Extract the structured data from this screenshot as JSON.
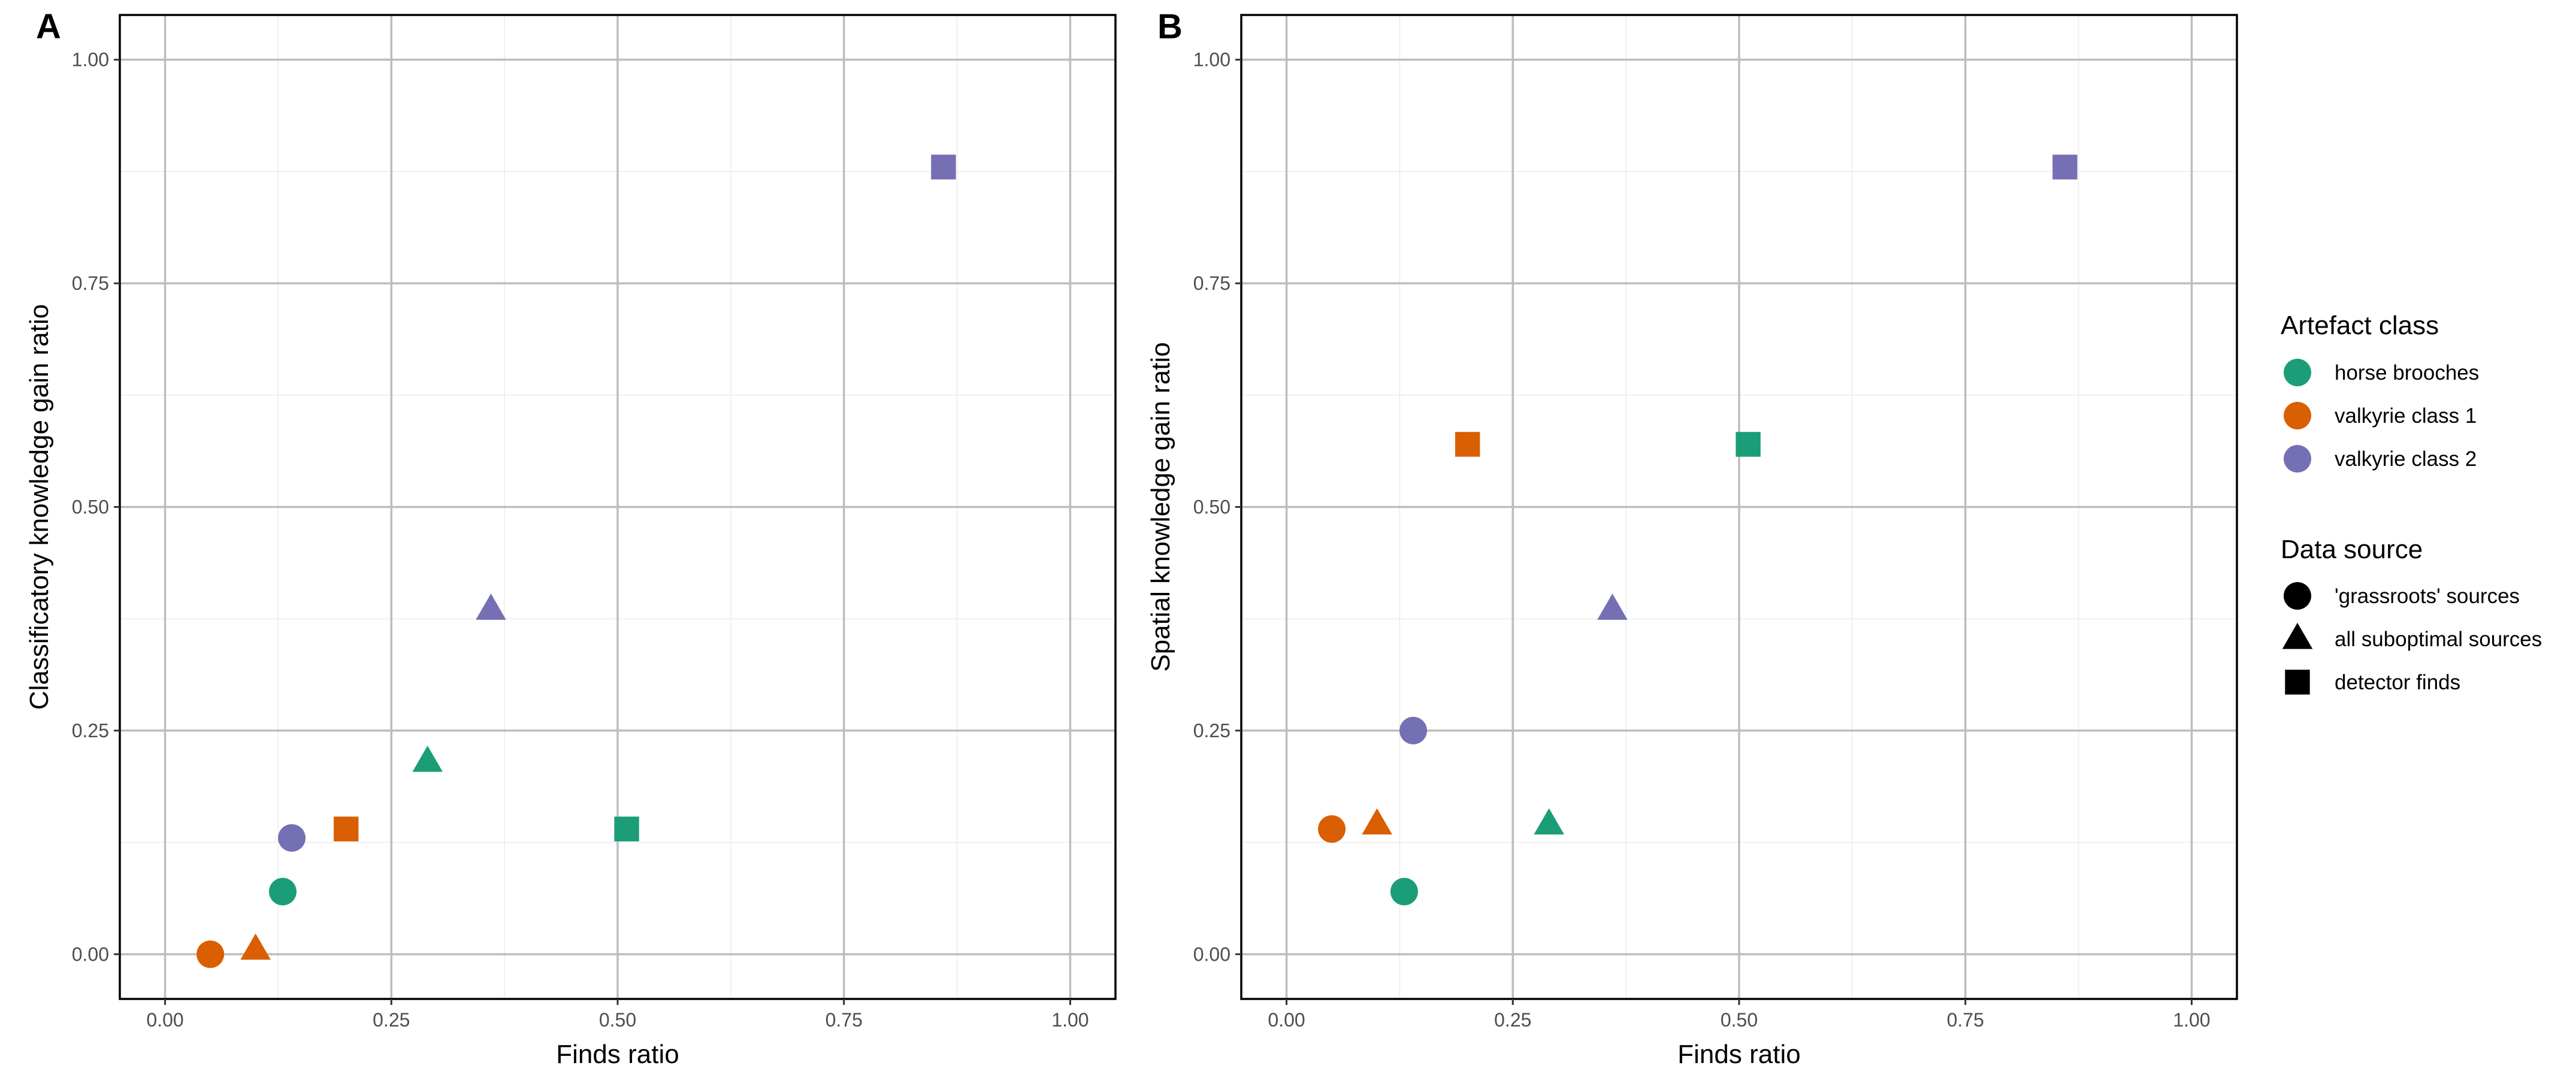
{
  "colors": {
    "horse brooches": "#1b9e77",
    "valkyrie class 1": "#d95f02",
    "valkyrie class 2": "#7570b3"
  },
  "chart_data": [
    {
      "type": "scatter",
      "panel": "A",
      "xlabel": "Finds ratio",
      "ylabel": "Classificatory knowledge gain ratio",
      "xlim": [
        -0.05,
        1.05
      ],
      "ylim": [
        -0.05,
        1.05
      ],
      "xticks": [
        "0.00",
        "0.25",
        "0.50",
        "0.75",
        "1.00"
      ],
      "yticks": [
        "0.00",
        "0.25",
        "0.50",
        "0.75",
        "1.00"
      ],
      "grid": true,
      "points": [
        {
          "artefact_class": "horse brooches",
          "source": "'grassroots' sources",
          "x": 0.13,
          "y": 0.07
        },
        {
          "artefact_class": "horse brooches",
          "source": "all suboptimal sources",
          "x": 0.29,
          "y": 0.215
        },
        {
          "artefact_class": "horse brooches",
          "source": "detector finds",
          "x": 0.51,
          "y": 0.14
        },
        {
          "artefact_class": "valkyrie class 1",
          "source": "'grassroots' sources",
          "x": 0.05,
          "y": 0.0
        },
        {
          "artefact_class": "valkyrie class 1",
          "source": "all suboptimal sources",
          "x": 0.1,
          "y": 0.005
        },
        {
          "artefact_class": "valkyrie class 1",
          "source": "detector finds",
          "x": 0.2,
          "y": 0.14
        },
        {
          "artefact_class": "valkyrie class 2",
          "source": "'grassroots' sources",
          "x": 0.14,
          "y": 0.13
        },
        {
          "artefact_class": "valkyrie class 2",
          "source": "all suboptimal sources",
          "x": 0.36,
          "y": 0.385
        },
        {
          "artefact_class": "valkyrie class 2",
          "source": "detector finds",
          "x": 0.86,
          "y": 0.88
        }
      ]
    },
    {
      "type": "scatter",
      "panel": "B",
      "xlabel": "Finds ratio",
      "ylabel": "Spatial knowledge gain ratio",
      "xlim": [
        -0.05,
        1.05
      ],
      "ylim": [
        -0.05,
        1.05
      ],
      "xticks": [
        "0.00",
        "0.25",
        "0.50",
        "0.75",
        "1.00"
      ],
      "yticks": [
        "0.00",
        "0.25",
        "0.50",
        "0.75",
        "1.00"
      ],
      "grid": true,
      "points": [
        {
          "artefact_class": "horse brooches",
          "source": "'grassroots' sources",
          "x": 0.13,
          "y": 0.07
        },
        {
          "artefact_class": "horse brooches",
          "source": "all suboptimal sources",
          "x": 0.29,
          "y": 0.145
        },
        {
          "artefact_class": "horse brooches",
          "source": "detector finds",
          "x": 0.51,
          "y": 0.57
        },
        {
          "artefact_class": "valkyrie class 1",
          "source": "'grassroots' sources",
          "x": 0.05,
          "y": 0.14
        },
        {
          "artefact_class": "valkyrie class 1",
          "source": "all suboptimal sources",
          "x": 0.1,
          "y": 0.145
        },
        {
          "artefact_class": "valkyrie class 1",
          "source": "detector finds",
          "x": 0.2,
          "y": 0.57
        },
        {
          "artefact_class": "valkyrie class 2",
          "source": "'grassroots' sources",
          "x": 0.14,
          "y": 0.25
        },
        {
          "artefact_class": "valkyrie class 2",
          "source": "all suboptimal sources",
          "x": 0.36,
          "y": 0.385
        },
        {
          "artefact_class": "valkyrie class 2",
          "source": "detector finds",
          "x": 0.86,
          "y": 0.88
        }
      ]
    }
  ],
  "legend": {
    "placement": "right",
    "color_title": "Artefact class",
    "color_items": [
      "horse brooches",
      "valkyrie class 1",
      "valkyrie class 2"
    ],
    "shape_title": "Data source",
    "shape_items": [
      {
        "label": "'grassroots' sources",
        "shape": "circle"
      },
      {
        "label": "all suboptimal sources",
        "shape": "triangle"
      },
      {
        "label": "detector finds",
        "shape": "square"
      }
    ]
  }
}
